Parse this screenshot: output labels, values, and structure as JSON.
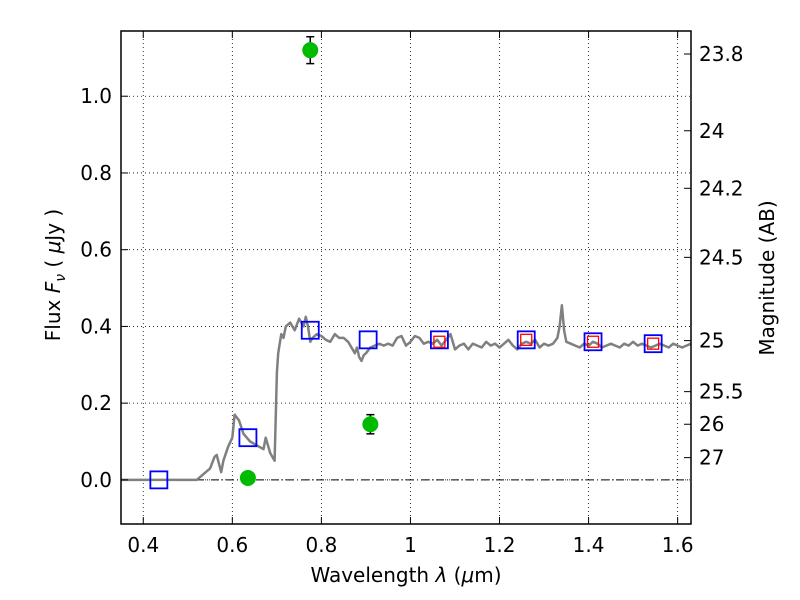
{
  "chart_data": {
    "type": "scatter",
    "title": "",
    "xlabel_parts": [
      "Wavelength  ",
      "λ",
      " (",
      "μ",
      "m)"
    ],
    "ylabel_parts": [
      "Flux  ",
      "F",
      "ν",
      "  ( ",
      "μ",
      "Jy )"
    ],
    "y2label": "Magnitude (AB)",
    "xlim": [
      0.35,
      1.63
    ],
    "ylim": [
      -0.115,
      1.17
    ],
    "grid": true,
    "x_ticks": [
      0.4,
      0.6,
      0.8,
      1.0,
      1.2,
      1.4,
      1.6
    ],
    "x_tick_labels": [
      "0.4",
      "0.6",
      "0.8",
      "1",
      "1.2",
      "1.4",
      "1.6"
    ],
    "y_ticks": [
      0.0,
      0.2,
      0.4,
      0.6,
      0.8,
      1.0
    ],
    "y_tick_labels": [
      "0.0",
      "0.2",
      "0.4",
      "0.6",
      "0.8",
      "1.0"
    ],
    "mag_ticks": [
      {
        "label": "23.8",
        "y": 1.11
      },
      {
        "label": "24",
        "y": 0.91
      },
      {
        "label": "24.2",
        "y": 0.76
      },
      {
        "label": "24.5",
        "y": 0.58
      },
      {
        "label": "25",
        "y": 0.363
      },
      {
        "label": "25.5",
        "y": 0.23
      },
      {
        "label": "26",
        "y": 0.145
      },
      {
        "label": "27",
        "y": 0.058
      }
    ],
    "zero_line": 0.0,
    "series": [
      {
        "kind": "line",
        "color": "#808080",
        "x": [
          0.35,
          0.52,
          0.55,
          0.56,
          0.565,
          0.575,
          0.58,
          0.59,
          0.6,
          0.605,
          0.615,
          0.625,
          0.64,
          0.655,
          0.67,
          0.675,
          0.685,
          0.69,
          0.695,
          0.7,
          0.703,
          0.707,
          0.71,
          0.715,
          0.72,
          0.73,
          0.74,
          0.75,
          0.76,
          0.765,
          0.77,
          0.775,
          0.78,
          0.79,
          0.8,
          0.81,
          0.82,
          0.83,
          0.84,
          0.85,
          0.86,
          0.87,
          0.875,
          0.88,
          0.885,
          0.89,
          0.895,
          0.9,
          0.91,
          0.92,
          0.93,
          0.94,
          0.95,
          0.96,
          0.97,
          0.98,
          0.99,
          1.0,
          1.01,
          1.02,
          1.03,
          1.04,
          1.05,
          1.06,
          1.07,
          1.08,
          1.09,
          1.1,
          1.11,
          1.12,
          1.13,
          1.14,
          1.15,
          1.16,
          1.17,
          1.18,
          1.19,
          1.2,
          1.21,
          1.22,
          1.23,
          1.24,
          1.25,
          1.26,
          1.27,
          1.28,
          1.29,
          1.3,
          1.31,
          1.32,
          1.33,
          1.335,
          1.34,
          1.345,
          1.35,
          1.36,
          1.37,
          1.38,
          1.39,
          1.4,
          1.41,
          1.42,
          1.43,
          1.44,
          1.45,
          1.46,
          1.47,
          1.48,
          1.49,
          1.5,
          1.51,
          1.52,
          1.53,
          1.54,
          1.55,
          1.56,
          1.57,
          1.58,
          1.59,
          1.6,
          1.61,
          1.62,
          1.63
        ],
        "y": [
          0.0,
          0.0,
          0.03,
          0.06,
          0.065,
          0.02,
          0.05,
          0.085,
          0.11,
          0.17,
          0.155,
          0.12,
          0.1,
          0.09,
          0.08,
          0.11,
          0.07,
          0.06,
          0.05,
          0.28,
          0.33,
          0.36,
          0.38,
          0.37,
          0.4,
          0.41,
          0.39,
          0.42,
          0.4,
          0.425,
          0.4,
          0.36,
          0.37,
          0.38,
          0.375,
          0.365,
          0.36,
          0.38,
          0.37,
          0.37,
          0.36,
          0.34,
          0.33,
          0.345,
          0.32,
          0.31,
          0.325,
          0.33,
          0.345,
          0.35,
          0.355,
          0.35,
          0.355,
          0.35,
          0.37,
          0.375,
          0.35,
          0.36,
          0.375,
          0.37,
          0.355,
          0.36,
          0.355,
          0.365,
          0.35,
          0.365,
          0.38,
          0.34,
          0.35,
          0.355,
          0.34,
          0.355,
          0.35,
          0.345,
          0.36,
          0.35,
          0.355,
          0.345,
          0.355,
          0.365,
          0.35,
          0.34,
          0.355,
          0.36,
          0.355,
          0.365,
          0.345,
          0.355,
          0.35,
          0.355,
          0.37,
          0.4,
          0.455,
          0.39,
          0.36,
          0.355,
          0.35,
          0.345,
          0.355,
          0.35,
          0.36,
          0.355,
          0.345,
          0.35,
          0.355,
          0.35,
          0.345,
          0.355,
          0.35,
          0.36,
          0.35,
          0.355,
          0.35,
          0.345,
          0.35,
          0.355,
          0.35,
          0.345,
          0.355,
          0.35,
          0.345,
          0.35,
          0.355
        ]
      },
      {
        "kind": "blue-squares",
        "color": "#0000ff",
        "x": [
          0.435,
          0.635,
          0.775,
          0.905,
          1.065,
          1.26,
          1.41,
          1.545
        ],
        "y": [
          0.0,
          0.11,
          0.39,
          0.365,
          0.365,
          0.365,
          0.36,
          0.355
        ]
      },
      {
        "kind": "red-squares",
        "color": "#ff0000",
        "x": [
          1.065,
          1.26,
          1.41,
          1.545
        ],
        "y": [
          0.36,
          0.365,
          0.36,
          0.355
        ]
      },
      {
        "kind": "green-points",
        "color": "#00bb00",
        "x": [
          0.635,
          0.775,
          0.91
        ],
        "y": [
          0.005,
          1.12,
          0.145
        ],
        "yerr": [
          0.012,
          0.035,
          0.025
        ]
      }
    ]
  }
}
